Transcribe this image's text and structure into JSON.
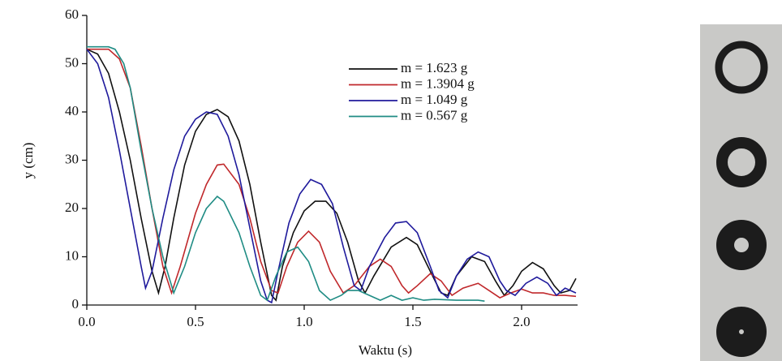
{
  "chart_data": {
    "type": "line",
    "xlabel": "Waktu (s)",
    "ylabel": "y (cm)",
    "xlim": [
      0,
      2.25
    ],
    "ylim": [
      0,
      60
    ],
    "xticks": [
      {
        "value": 0,
        "label": "0.0"
      },
      0.5,
      {
        "value": 1,
        "label": "1.0"
      },
      1.5,
      {
        "value": 2,
        "label": "2.0"
      }
    ],
    "yticks": [
      0,
      10,
      20,
      30,
      40,
      50,
      60
    ],
    "legend": "upper-right",
    "series": [
      {
        "name": "m = 1.623 g",
        "color": "#111111",
        "x": [
          0,
          0.05,
          0.1,
          0.15,
          0.2,
          0.25,
          0.3,
          0.33,
          0.36,
          0.4,
          0.45,
          0.5,
          0.55,
          0.6,
          0.65,
          0.7,
          0.75,
          0.8,
          0.85,
          0.87,
          0.9,
          0.95,
          1.0,
          1.05,
          1.1,
          1.15,
          1.2,
          1.25,
          1.28,
          1.32,
          1.4,
          1.47,
          1.52,
          1.58,
          1.63,
          1.66,
          1.7,
          1.77,
          1.83,
          1.88,
          1.92,
          1.96,
          2.0,
          2.05,
          2.1,
          2.15,
          2.18,
          2.22,
          2.25
        ],
        "values": [
          53,
          52,
          48,
          40,
          30,
          18,
          7,
          2.5,
          8,
          18,
          29,
          36,
          39.5,
          40.5,
          39,
          34,
          25,
          13,
          2,
          1,
          8,
          15,
          19.5,
          21.5,
          21.5,
          19,
          13,
          5,
          2.5,
          6,
          12,
          14,
          12.5,
          7,
          2.5,
          2,
          6,
          10,
          9,
          5,
          2,
          4,
          7,
          8.8,
          7.5,
          4,
          2.5,
          3,
          5.5
        ]
      },
      {
        "name": "m = 1.3904 g",
        "color": "#c0282b",
        "x": [
          0,
          0.1,
          0.15,
          0.2,
          0.25,
          0.3,
          0.35,
          0.39,
          0.43,
          0.5,
          0.55,
          0.6,
          0.63,
          0.7,
          0.75,
          0.8,
          0.85,
          0.88,
          0.92,
          0.97,
          1.02,
          1.07,
          1.12,
          1.18,
          1.23,
          1.3,
          1.35,
          1.4,
          1.45,
          1.48,
          1.52,
          1.58,
          1.63,
          1.68,
          1.73,
          1.8,
          1.85,
          1.9,
          1.95,
          2.0,
          2.05,
          2.1,
          2.15,
          2.2,
          2.25
        ],
        "values": [
          53,
          53,
          51,
          45,
          33,
          20,
          8,
          2.5,
          8,
          19,
          25,
          29,
          29.2,
          25,
          18,
          9,
          3,
          2.5,
          8,
          13,
          15.3,
          13,
          7,
          2.5,
          4,
          8,
          9.5,
          8,
          4,
          2.5,
          4,
          6.5,
          5,
          2,
          3.5,
          4.5,
          3,
          1.5,
          2.5,
          3.3,
          2.5,
          2.5,
          2,
          2,
          1.8
        ]
      },
      {
        "name": "m = 1.049 g",
        "color": "#1f1a9c",
        "x": [
          0,
          0.05,
          0.1,
          0.15,
          0.2,
          0.25,
          0.27,
          0.3,
          0.35,
          0.4,
          0.45,
          0.5,
          0.55,
          0.6,
          0.65,
          0.7,
          0.75,
          0.8,
          0.83,
          0.85,
          0.88,
          0.93,
          0.98,
          1.03,
          1.08,
          1.13,
          1.18,
          1.23,
          1.26,
          1.3,
          1.37,
          1.42,
          1.47,
          1.52,
          1.58,
          1.62,
          1.66,
          1.7,
          1.75,
          1.8,
          1.85,
          1.9,
          1.93,
          1.97,
          2.02,
          2.07,
          2.12,
          2.16,
          2.2,
          2.25
        ],
        "values": [
          53,
          50,
          43,
          32,
          20,
          8,
          3.5,
          7,
          18,
          28,
          35,
          38.5,
          40,
          39.5,
          35,
          27,
          16,
          5,
          1,
          0.5,
          7,
          17,
          23,
          26,
          25,
          21,
          12,
          4,
          3,
          8,
          14,
          17,
          17.3,
          15,
          8,
          3,
          1.5,
          6,
          9.5,
          11,
          10,
          5,
          3,
          2,
          4.5,
          5.8,
          4.5,
          2,
          3.5,
          2.5
        ]
      },
      {
        "name": "m = 0.567 g",
        "color": "#1f8c84",
        "x": [
          0,
          0.1,
          0.13,
          0.17,
          0.2,
          0.25,
          0.3,
          0.35,
          0.4,
          0.45,
          0.5,
          0.55,
          0.6,
          0.63,
          0.7,
          0.75,
          0.8,
          0.83,
          0.87,
          0.92,
          0.97,
          1.02,
          1.07,
          1.12,
          1.17,
          1.2,
          1.25,
          1.3,
          1.35,
          1.4,
          1.45,
          1.5,
          1.55,
          1.6,
          1.7,
          1.8,
          1.83
        ],
        "values": [
          53.5,
          53.5,
          53,
          50,
          45,
          32,
          20,
          10,
          2.5,
          8,
          15,
          20,
          22.5,
          21.5,
          15,
          8,
          2,
          1,
          6,
          11,
          12,
          9,
          3,
          1,
          2,
          3,
          3,
          2,
          1,
          2,
          1,
          1.5,
          1,
          1.2,
          1,
          1,
          0.8
        ]
      }
    ]
  }
}
